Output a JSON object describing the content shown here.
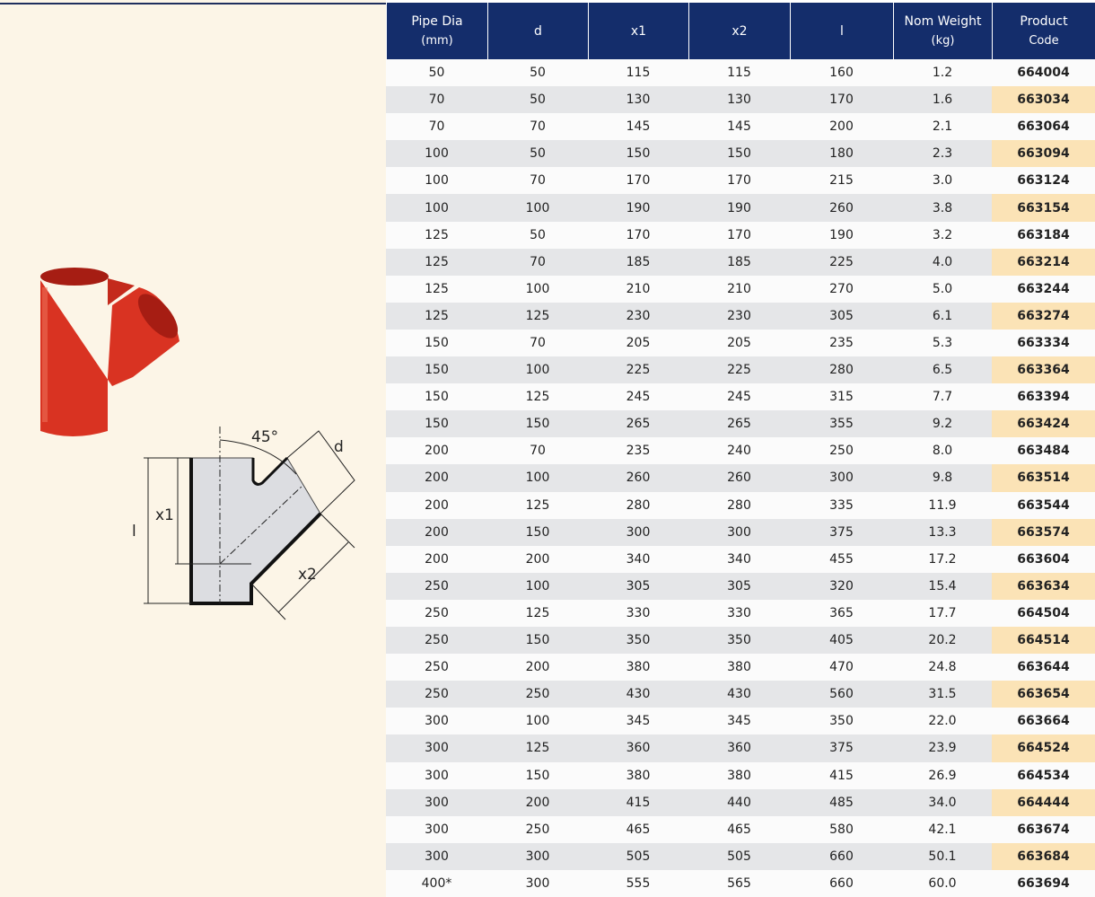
{
  "diagram": {
    "labels": {
      "angle": "45°",
      "d": "d",
      "x1": "x1",
      "l": "l",
      "x2": "x2"
    }
  },
  "table": {
    "columns": [
      [
        "Pipe Dia",
        "(mm)"
      ],
      [
        "d"
      ],
      [
        "x1"
      ],
      [
        "x2"
      ],
      [
        "l"
      ],
      [
        "Nom Weight",
        "(kg)"
      ],
      [
        "Product",
        "Code"
      ]
    ],
    "rows": [
      [
        "50",
        "50",
        "115",
        "115",
        "160",
        "1.2",
        "664004"
      ],
      [
        "70",
        "50",
        "130",
        "130",
        "170",
        "1.6",
        "663034"
      ],
      [
        "70",
        "70",
        "145",
        "145",
        "200",
        "2.1",
        "663064"
      ],
      [
        "100",
        "50",
        "150",
        "150",
        "180",
        "2.3",
        "663094"
      ],
      [
        "100",
        "70",
        "170",
        "170",
        "215",
        "3.0",
        "663124"
      ],
      [
        "100",
        "100",
        "190",
        "190",
        "260",
        "3.8",
        "663154"
      ],
      [
        "125",
        "50",
        "170",
        "170",
        "190",
        "3.2",
        "663184"
      ],
      [
        "125",
        "70",
        "185",
        "185",
        "225",
        "4.0",
        "663214"
      ],
      [
        "125",
        "100",
        "210",
        "210",
        "270",
        "5.0",
        "663244"
      ],
      [
        "125",
        "125",
        "230",
        "230",
        "305",
        "6.1",
        "663274"
      ],
      [
        "150",
        "70",
        "205",
        "205",
        "235",
        "5.3",
        "663334"
      ],
      [
        "150",
        "100",
        "225",
        "225",
        "280",
        "6.5",
        "663364"
      ],
      [
        "150",
        "125",
        "245",
        "245",
        "315",
        "7.7",
        "663394"
      ],
      [
        "150",
        "150",
        "265",
        "265",
        "355",
        "9.2",
        "663424"
      ],
      [
        "200",
        "70",
        "235",
        "240",
        "250",
        "8.0",
        "663484"
      ],
      [
        "200",
        "100",
        "260",
        "260",
        "300",
        "9.8",
        "663514"
      ],
      [
        "200",
        "125",
        "280",
        "280",
        "335",
        "11.9",
        "663544"
      ],
      [
        "200",
        "150",
        "300",
        "300",
        "375",
        "13.3",
        "663574"
      ],
      [
        "200",
        "200",
        "340",
        "340",
        "455",
        "17.2",
        "663604"
      ],
      [
        "250",
        "100",
        "305",
        "305",
        "320",
        "15.4",
        "663634"
      ],
      [
        "250",
        "125",
        "330",
        "330",
        "365",
        "17.7",
        "664504"
      ],
      [
        "250",
        "150",
        "350",
        "350",
        "405",
        "20.2",
        "664514"
      ],
      [
        "250",
        "200",
        "380",
        "380",
        "470",
        "24.8",
        "663644"
      ],
      [
        "250",
        "250",
        "430",
        "430",
        "560",
        "31.5",
        "663654"
      ],
      [
        "300",
        "100",
        "345",
        "345",
        "350",
        "22.0",
        "663664"
      ],
      [
        "300",
        "125",
        "360",
        "360",
        "375",
        "23.9",
        "664524"
      ],
      [
        "300",
        "150",
        "380",
        "380",
        "415",
        "26.9",
        "664534"
      ],
      [
        "300",
        "200",
        "415",
        "440",
        "485",
        "34.0",
        "664444"
      ],
      [
        "300",
        "250",
        "465",
        "465",
        "580",
        "42.1",
        "663674"
      ],
      [
        "300",
        "300",
        "505",
        "505",
        "660",
        "50.1",
        "663684"
      ],
      [
        "400*",
        "300",
        "555",
        "565",
        "660",
        "60.0",
        "663694"
      ]
    ]
  }
}
